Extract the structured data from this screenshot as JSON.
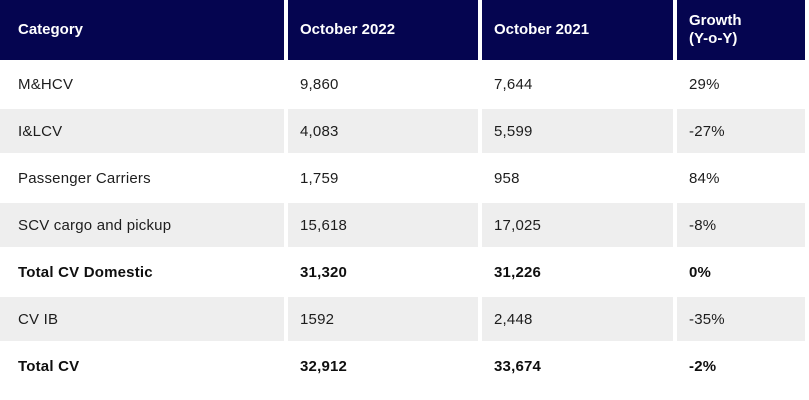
{
  "colors": {
    "header_bg": "#050550",
    "header_text": "#ffffff",
    "row_alt_bg": "#eeeeee",
    "row_bg": "#ffffff",
    "body_text": "#1d1d1d"
  },
  "header": {
    "category": "Category",
    "october_2022": "October 2022",
    "october_2021": "October 2021",
    "growth_line1": "Growth",
    "growth_line2": "(Y-o-Y)"
  },
  "chart_data": {
    "type": "table",
    "columns": [
      "Category",
      "October 2022",
      "October 2021",
      "Growth (Y-o-Y)"
    ],
    "rows": [
      {
        "category": "M&HCV",
        "october_2022": "9,860",
        "october_2021": "7,644",
        "growth_yoy": "29%",
        "emphasis": false
      },
      {
        "category": "I&LCV",
        "october_2022": "4,083",
        "october_2021": "5,599",
        "growth_yoy": "-27%",
        "emphasis": false
      },
      {
        "category": "Passenger Carriers",
        "october_2022": "1,759",
        "october_2021": "958",
        "growth_yoy": "84%",
        "emphasis": false
      },
      {
        "category": "SCV cargo and pickup",
        "october_2022": "15,618",
        "october_2021": "17,025",
        "growth_yoy": "-8%",
        "emphasis": false
      },
      {
        "category": "Total CV Domestic",
        "october_2022": "31,320",
        "october_2021": "31,226",
        "growth_yoy": "0%",
        "emphasis": true
      },
      {
        "category": "CV IB",
        "october_2022": "1592",
        "october_2021": "2,448",
        "growth_yoy": "-35%",
        "emphasis": false
      },
      {
        "category": "Total CV",
        "october_2022": "32,912",
        "october_2021": "33,674",
        "growth_yoy": "-2%",
        "emphasis": true
      }
    ],
    "numeric": {
      "october_2022": [
        9860,
        4083,
        1759,
        15618,
        31320,
        1592,
        32912
      ],
      "october_2021": [
        7644,
        5599,
        958,
        17025,
        31226,
        2448,
        33674
      ],
      "growth_yoy_percent": [
        29,
        -27,
        84,
        -8,
        0,
        -35,
        -2
      ]
    }
  }
}
